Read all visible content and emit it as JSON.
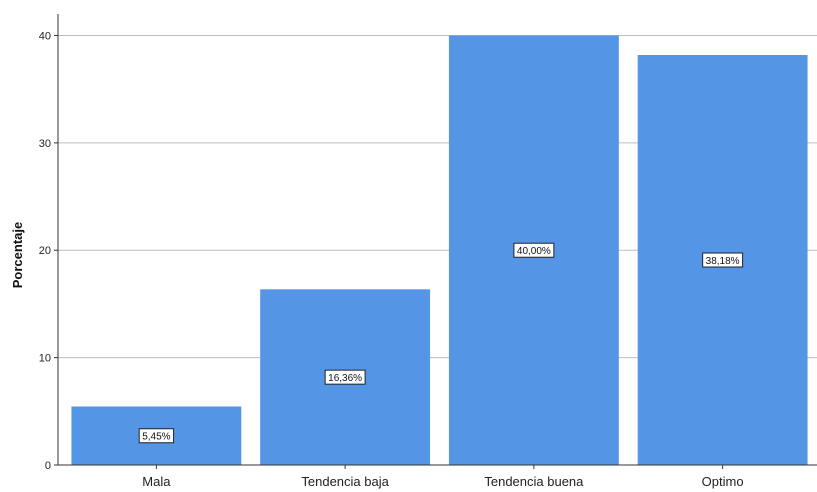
{
  "chart_data": {
    "type": "bar",
    "categories": [
      "Mala",
      "Tendencia baja",
      "Tendencia buena",
      "Optimo"
    ],
    "values": [
      5.45,
      16.36,
      40.0,
      38.18
    ],
    "data_labels": [
      "5,45%",
      "16,36%",
      "40,00%",
      "38,18%"
    ],
    "ylabel": "Porcentaje",
    "xlabel": "",
    "ylim": [
      0,
      42
    ],
    "yticks": [
      0,
      10,
      20,
      30,
      40
    ],
    "ytick_labels": [
      "0",
      "10",
      "20",
      "30",
      "40"
    ],
    "grid": "horizontal",
    "bar_color": "#5595e5"
  }
}
